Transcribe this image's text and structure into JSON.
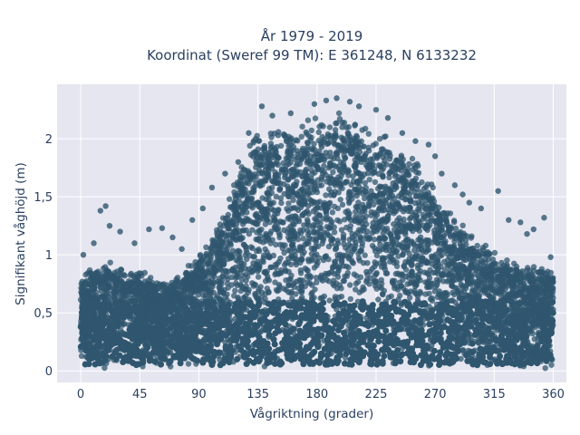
{
  "chart_data": {
    "type": "scatter",
    "title_line1": "År 1979 - 2019",
    "title_line2": "Koordinat (Sweref 99 TM): E 361248, N 6133232",
    "xlabel": "Vågriktning (grader)",
    "ylabel": "Signifikant våghöjd (m)",
    "xlim": [
      -18,
      370
    ],
    "ylim": [
      -0.1,
      2.47
    ],
    "x_ticks": [
      0,
      45,
      90,
      135,
      180,
      225,
      270,
      315,
      360
    ],
    "x_tick_labels": [
      "0",
      "45",
      "90",
      "135",
      "180",
      "225",
      "270",
      "315",
      "360"
    ],
    "y_ticks": [
      0,
      0.5,
      1,
      1.5,
      2
    ],
    "y_tick_labels": [
      "0",
      "0,5",
      "1",
      "1,5",
      "2"
    ],
    "grid": true,
    "point_color": "#2f566e",
    "background_color": "#e5e6f0",
    "upper_envelope": {
      "x": [
        0,
        10,
        20,
        30,
        45,
        60,
        75,
        90,
        105,
        120,
        135,
        150,
        165,
        180,
        195,
        210,
        225,
        240,
        255,
        270,
        285,
        300,
        315,
        330,
        345,
        360
      ],
      "y": [
        0.85,
        0.9,
        0.95,
        0.9,
        0.88,
        0.78,
        0.85,
        1.0,
        1.25,
        1.75,
        2.15,
        2.15,
        2.15,
        2.25,
        2.27,
        2.2,
        2.1,
        2.0,
        1.85,
        1.6,
        1.35,
        1.15,
        1.05,
        0.95,
        0.9,
        0.88
      ]
    },
    "outliers": [
      {
        "x": 15,
        "y": 1.38
      },
      {
        "x": 19,
        "y": 1.42
      },
      {
        "x": 22,
        "y": 1.25
      },
      {
        "x": 30,
        "y": 1.2
      },
      {
        "x": 10,
        "y": 1.1
      },
      {
        "x": 52,
        "y": 1.22
      },
      {
        "x": 62,
        "y": 1.23
      },
      {
        "x": 70,
        "y": 1.15
      },
      {
        "x": 85,
        "y": 1.3
      },
      {
        "x": 93,
        "y": 1.4
      },
      {
        "x": 100,
        "y": 1.58
      },
      {
        "x": 110,
        "y": 1.7
      },
      {
        "x": 120,
        "y": 1.8
      },
      {
        "x": 138,
        "y": 2.28
      },
      {
        "x": 160,
        "y": 2.22
      },
      {
        "x": 178,
        "y": 2.3
      },
      {
        "x": 187,
        "y": 2.33
      },
      {
        "x": 195,
        "y": 2.35
      },
      {
        "x": 205,
        "y": 2.32
      },
      {
        "x": 225,
        "y": 2.25
      },
      {
        "x": 245,
        "y": 2.05
      },
      {
        "x": 255,
        "y": 1.98
      },
      {
        "x": 265,
        "y": 1.95
      },
      {
        "x": 270,
        "y": 1.85
      },
      {
        "x": 275,
        "y": 1.7
      },
      {
        "x": 285,
        "y": 1.6
      },
      {
        "x": 296,
        "y": 1.45
      },
      {
        "x": 305,
        "y": 1.4
      },
      {
        "x": 318,
        "y": 1.55
      },
      {
        "x": 326,
        "y": 1.3
      },
      {
        "x": 335,
        "y": 1.28
      },
      {
        "x": 345,
        "y": 1.22
      },
      {
        "x": 353,
        "y": 1.32
      },
      {
        "x": 358,
        "y": 0.98
      },
      {
        "x": 2,
        "y": 1.0
      },
      {
        "x": 41,
        "y": 1.1
      },
      {
        "x": 77,
        "y": 1.05
      },
      {
        "x": 128,
        "y": 2.05
      },
      {
        "x": 146,
        "y": 2.2
      },
      {
        "x": 212,
        "y": 2.28
      },
      {
        "x": 234,
        "y": 2.18
      },
      {
        "x": 291,
        "y": 1.52
      },
      {
        "x": 340,
        "y": 1.18
      }
    ]
  }
}
